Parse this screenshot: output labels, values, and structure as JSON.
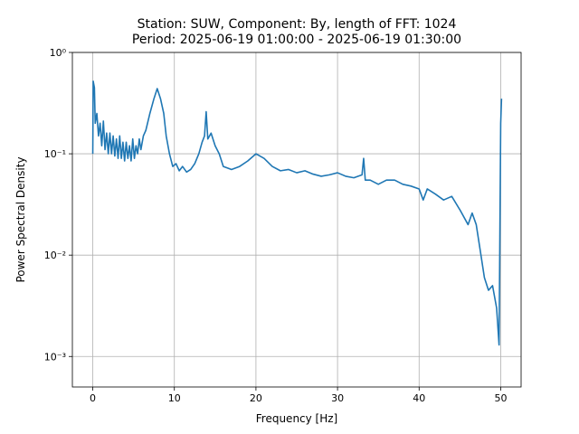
{
  "chart_data": {
    "type": "line",
    "title": "Station: SUW, Component: By, length of FFT: 1024",
    "subtitle": "Period: 2025-06-19 01:00:00 - 2025-06-19 01:30:00",
    "x_label": "Frequency [Hz]",
    "y_label": "Power Spectral Density",
    "log_y": true,
    "grid": true,
    "color": "#1f77b4",
    "xlim": [
      -2.5,
      52.5
    ],
    "ylim": [
      0.0005,
      1
    ],
    "xticks": [
      0,
      10,
      20,
      30,
      40,
      50
    ],
    "yticks": [
      {
        "value": 0.001,
        "label": "10⁻³"
      },
      {
        "value": 0.01,
        "label": "10⁻²"
      },
      {
        "value": 0.1,
        "label": "10⁻¹"
      },
      {
        "value": 1,
        "label": "10⁰"
      }
    ],
    "x": [
      0,
      0.05,
      0.2,
      0.3,
      0.5,
      0.7,
      0.9,
      1.1,
      1.3,
      1.5,
      1.7,
      1.9,
      2.1,
      2.3,
      2.5,
      2.7,
      2.9,
      3.1,
      3.3,
      3.5,
      3.7,
      3.9,
      4.1,
      4.3,
      4.5,
      4.7,
      4.9,
      5.1,
      5.3,
      5.5,
      5.7,
      5.9,
      6.2,
      6.5,
      7.0,
      7.5,
      7.9,
      8.3,
      8.7,
      9.0,
      9.4,
      9.8,
      10.2,
      10.6,
      11.0,
      11.5,
      12.0,
      12.5,
      13.0,
      13.4,
      13.7,
      13.9,
      14.1,
      14.5,
      15.0,
      15.5,
      16.0,
      17.0,
      18.0,
      19.0,
      20.0,
      21.0,
      22.0,
      23.0,
      24.0,
      25.0,
      26.0,
      27.0,
      28.0,
      29.0,
      30.0,
      31.0,
      32.0,
      33.0,
      33.2,
      33.4,
      34.0,
      35.0,
      36.0,
      37.0,
      38.0,
      39.0,
      40.0,
      40.5,
      41.0,
      42.0,
      43.0,
      44.0,
      45.0,
      46.0,
      46.5,
      47.0,
      47.5,
      48.0,
      48.5,
      49.0,
      49.5,
      49.8,
      50.0,
      50.1
    ],
    "values": [
      0.1,
      0.52,
      0.45,
      0.2,
      0.25,
      0.15,
      0.2,
      0.12,
      0.21,
      0.11,
      0.16,
      0.1,
      0.16,
      0.1,
      0.15,
      0.095,
      0.14,
      0.09,
      0.15,
      0.09,
      0.13,
      0.085,
      0.13,
      0.09,
      0.12,
      0.085,
      0.14,
      0.09,
      0.12,
      0.1,
      0.14,
      0.11,
      0.15,
      0.17,
      0.25,
      0.35,
      0.44,
      0.35,
      0.25,
      0.15,
      0.1,
      0.075,
      0.08,
      0.068,
      0.075,
      0.066,
      0.07,
      0.08,
      0.1,
      0.13,
      0.15,
      0.26,
      0.14,
      0.16,
      0.12,
      0.1,
      0.075,
      0.07,
      0.075,
      0.085,
      0.1,
      0.09,
      0.075,
      0.068,
      0.07,
      0.065,
      0.068,
      0.063,
      0.06,
      0.062,
      0.065,
      0.06,
      0.058,
      0.062,
      0.09,
      0.055,
      0.055,
      0.05,
      0.055,
      0.055,
      0.05,
      0.048,
      0.045,
      0.035,
      0.045,
      0.04,
      0.035,
      0.038,
      0.028,
      0.02,
      0.026,
      0.02,
      0.011,
      0.006,
      0.0045,
      0.005,
      0.003,
      0.0013,
      0.2,
      0.35
    ]
  }
}
